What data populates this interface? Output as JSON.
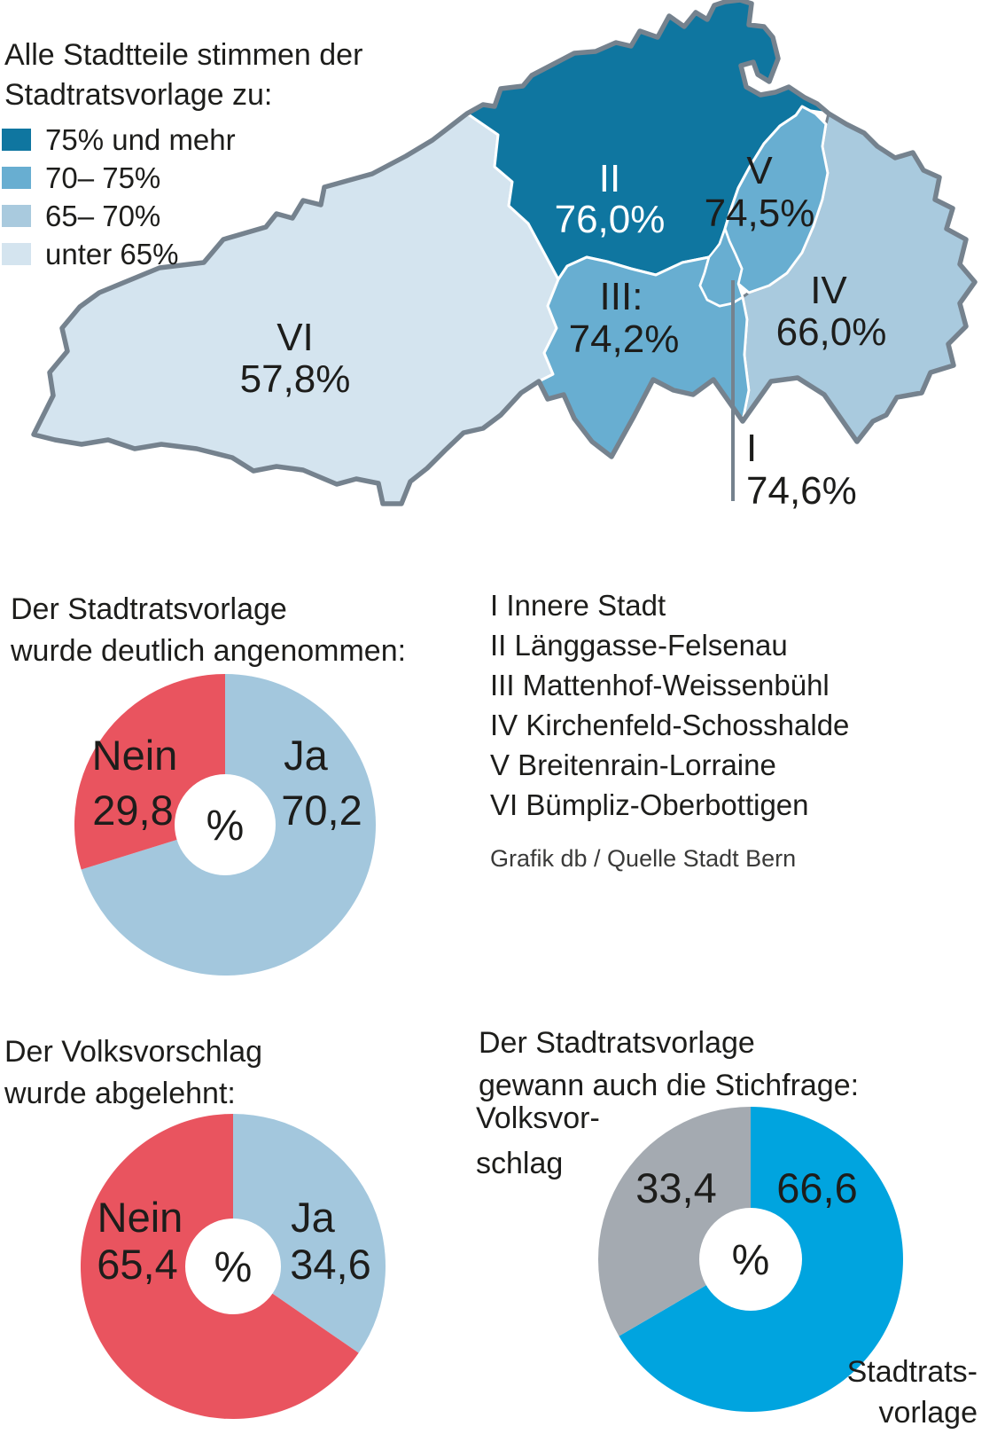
{
  "map": {
    "legend_title": [
      "Alle Stadtteile stimmen der",
      "Stadtratsvorlage zu:"
    ],
    "legend_items": [
      {
        "label": "75% und mehr",
        "color": "#0f76a0"
      },
      {
        "label": "70– 75%",
        "color": "#68aed1"
      },
      {
        "label": "65– 70%",
        "color": "#a9cade"
      },
      {
        "label": "unter 65%",
        "color": "#d4e4ef"
      }
    ],
    "districts": [
      {
        "numeral": "I",
        "share": "74,6%"
      },
      {
        "numeral": "II",
        "share": "76,0%"
      },
      {
        "numeral": "III:",
        "share": "74,2%"
      },
      {
        "numeral": "IV",
        "share": "66,0%"
      },
      {
        "numeral": "V",
        "share": "74,5%"
      },
      {
        "numeral": "VI",
        "share": "57,8%"
      }
    ],
    "outline_color": "#75828e"
  },
  "district_index": {
    "items": [
      "I Innere Stadt",
      "II Länggasse-Felsenau",
      "III Mattenhof-Weissenbühl",
      "IV Kirchenfeld-Schosshalde",
      "V Breitenrain-Lorraine",
      "VI Bümpliz-Oberbottigen"
    ]
  },
  "source": "Grafik db / Quelle Stadt Bern",
  "charts": {
    "accepted": {
      "title": [
        "Der Stadtratsvorlage",
        "wurde deutlich angenommen:"
      ],
      "center": "%"
    },
    "rejected": {
      "title": [
        "Der Volksvorschlag",
        "wurde abgelehnt:"
      ],
      "center": "%"
    },
    "runoff": {
      "title": [
        "Der Stadtratsvorlage",
        "gewann auch die Stichfrage:"
      ],
      "center": "%",
      "outside_left": [
        "Volksvor-",
        "schlag"
      ],
      "outside_right": [
        "Stadtrats-",
        "vorlage"
      ]
    }
  },
  "chart_data": [
    {
      "type": "choropleth-map",
      "title": "Alle Stadtteile stimmen der Stadtratsvorlage zu:",
      "unit": "%",
      "regions": [
        {
          "id": "I",
          "name": "Innere Stadt",
          "value": 74.6
        },
        {
          "id": "II",
          "name": "Länggasse-Felsenau",
          "value": 76.0
        },
        {
          "id": "III",
          "name": "Mattenhof-Weissenbühl",
          "value": 74.2
        },
        {
          "id": "IV",
          "name": "Kirchenfeld-Schosshalde",
          "value": 66.0
        },
        {
          "id": "V",
          "name": "Breitenrain-Lorraine",
          "value": 74.5
        },
        {
          "id": "VI",
          "name": "Bümpliz-Oberbottigen",
          "value": 57.8
        }
      ],
      "bins": [
        {
          "label": "75% und mehr",
          "color": "#0f76a0"
        },
        {
          "label": "70– 75%",
          "color": "#68aed1"
        },
        {
          "label": "65– 70%",
          "color": "#a9cade"
        },
        {
          "label": "unter 65%",
          "color": "#d4e4ef"
        }
      ]
    },
    {
      "type": "pie",
      "donut": true,
      "title": "Der Stadtratsvorlage wurde deutlich angenommen:",
      "unit": "%",
      "start": "top",
      "direction": "clockwise",
      "slices": [
        {
          "label": "Ja",
          "value": 70.2,
          "display": "70,2",
          "color": "#a3c7dd"
        },
        {
          "label": "Nein",
          "value": 29.8,
          "display": "29,8",
          "color": "#e9545f"
        }
      ]
    },
    {
      "type": "pie",
      "donut": true,
      "title": "Der Volksvorschlag wurde abgelehnt:",
      "unit": "%",
      "start": "top",
      "direction": "clockwise",
      "slices": [
        {
          "label": "Ja",
          "value": 34.6,
          "display": "34,6",
          "color": "#a3c7dd"
        },
        {
          "label": "Nein",
          "value": 65.4,
          "display": "65,4",
          "color": "#e9545f"
        }
      ]
    },
    {
      "type": "pie",
      "donut": true,
      "title": "Der Stadtratsvorlage gewann auch die Stichfrage:",
      "unit": "%",
      "start": "top",
      "direction": "clockwise",
      "slices": [
        {
          "label": "Stadtratsvorlage",
          "value": 66.6,
          "display": "66,6",
          "color": "#00a4df"
        },
        {
          "label": "Volksvorschlag",
          "value": 33.4,
          "display": "33,4",
          "color": "#a4aab1"
        }
      ]
    }
  ]
}
